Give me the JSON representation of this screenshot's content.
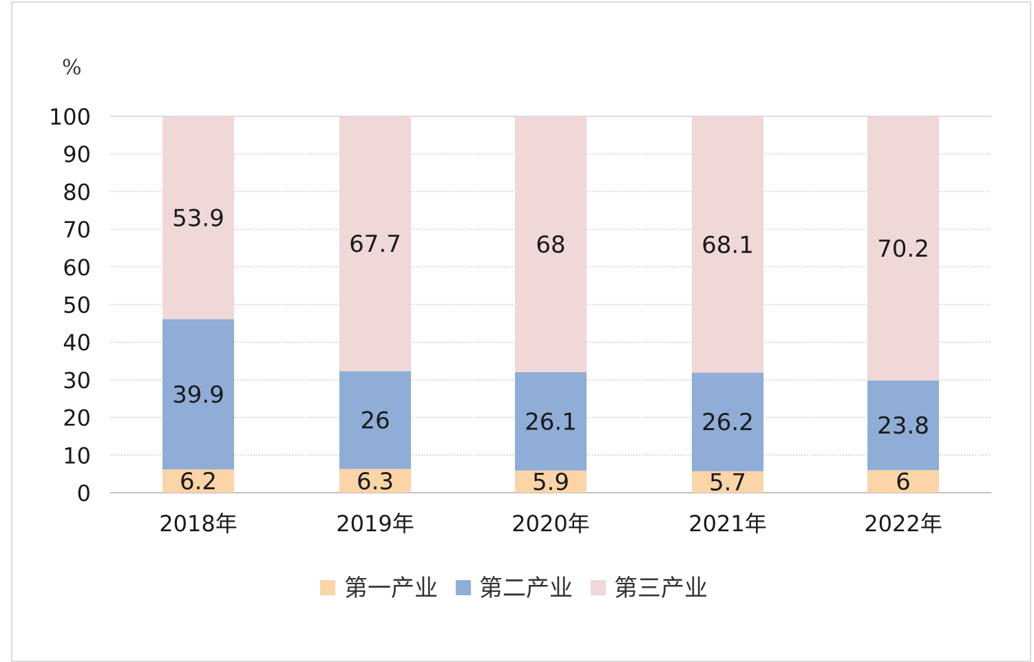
{
  "chart_data": {
    "type": "bar",
    "stacked": true,
    "unit_label": "%",
    "categories": [
      "2018年",
      "2019年",
      "2020年",
      "2021年",
      "2022年"
    ],
    "series": [
      {
        "name": "第一产业",
        "values": [
          6.2,
          6.3,
          5.9,
          5.7,
          6
        ],
        "labels": [
          "6.2",
          "6.3",
          "5.9",
          "5.7",
          "6"
        ],
        "color": "#fbd4a8"
      },
      {
        "name": "第二产业",
        "values": [
          39.9,
          26,
          26.1,
          26.2,
          23.8
        ],
        "labels": [
          "39.9",
          "26",
          "26.1",
          "26.2",
          "23.8"
        ],
        "color": "#8fadd6"
      },
      {
        "name": "第三产业",
        "values": [
          53.9,
          67.7,
          68,
          68.1,
          70.2
        ],
        "labels": [
          "53.9",
          "67.7",
          "68",
          "68.1",
          "70.2"
        ],
        "color": "#f0d8d8"
      }
    ],
    "yticks": [
      "0",
      "10",
      "20",
      "30",
      "40",
      "50",
      "60",
      "70",
      "80",
      "90",
      "100"
    ],
    "ylim": [
      0,
      100
    ],
    "grid": true,
    "legend_position": "bottom",
    "grid_color": "#d0d0d0"
  }
}
